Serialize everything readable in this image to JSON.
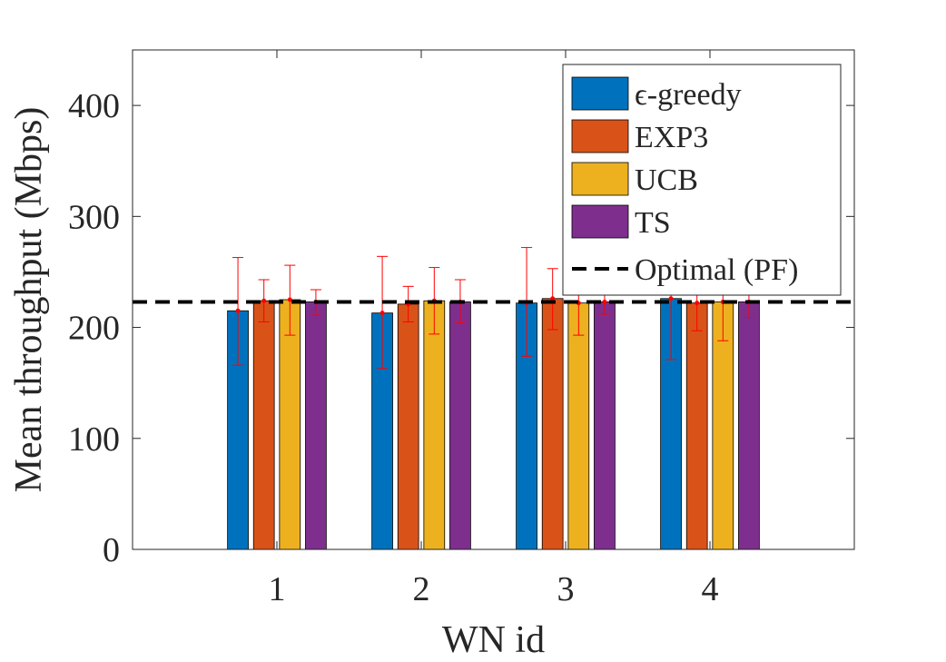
{
  "chart_data": {
    "type": "bar",
    "title": "",
    "xlabel": "WN id",
    "ylabel": "Mean throughput (Mbps)",
    "categories": [
      "1",
      "2",
      "3",
      "4"
    ],
    "xlim": [
      0,
      5
    ],
    "ylim": [
      0,
      450
    ],
    "yticks": [
      0,
      100,
      200,
      300,
      400
    ],
    "grid": false,
    "legend_position": "top-right",
    "series": [
      {
        "name": "ϵ-greedy",
        "color": "#0072BD",
        "values": [
          215,
          213,
          222,
          226
        ],
        "err_low": [
          166,
          163,
          174,
          171
        ],
        "err_high": [
          263,
          264,
          272,
          282
        ]
      },
      {
        "name": "EXP3",
        "color": "#D95319",
        "values": [
          224,
          221,
          226,
          222
        ],
        "err_low": [
          205,
          205,
          198,
          197
        ],
        "err_high": [
          243,
          237,
          253,
          247
        ]
      },
      {
        "name": "UCB",
        "color": "#EDB120",
        "values": [
          225,
          224,
          222,
          223
        ],
        "err_low": [
          193,
          194,
          193,
          188
        ],
        "err_high": [
          256,
          254,
          251,
          258
        ]
      },
      {
        "name": "TS",
        "color": "#7E2F8E",
        "values": [
          223,
          223,
          223,
          223
        ],
        "err_low": [
          211,
          204,
          212,
          209
        ],
        "err_high": [
          234,
          243,
          234,
          237
        ]
      }
    ],
    "reference_line": {
      "name": "Optimal (PF)",
      "value": 223,
      "style": "dashed",
      "color": "#000000"
    },
    "errorbar_color": "#FF0000"
  }
}
